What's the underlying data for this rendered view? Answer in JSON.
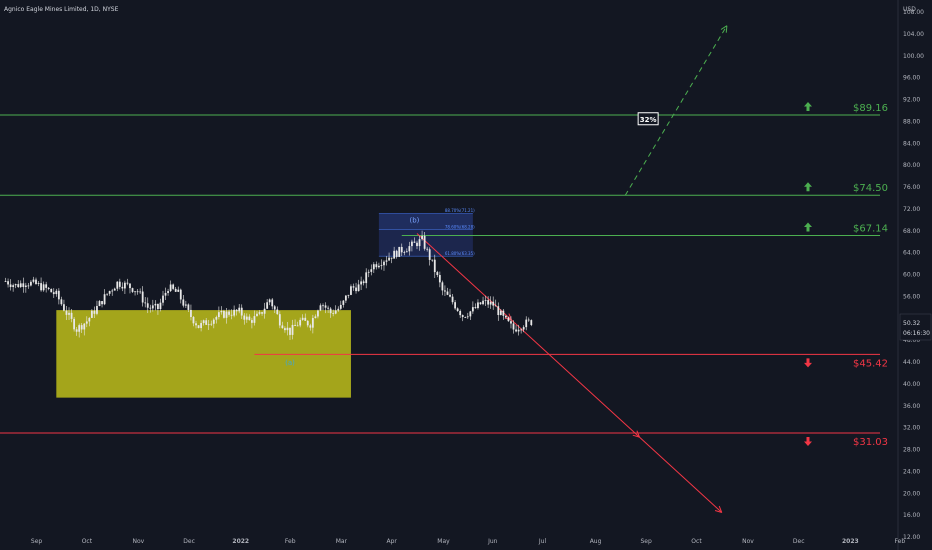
{
  "title": "Agnico Eagle Mines Limited, 1D, NYSE",
  "currency": "USD",
  "colors": {
    "background": "#131722",
    "up_line": "#4caf50",
    "down_line": "#f23645",
    "candle": "#e8e8e8",
    "demand_zone": "#c4c41a",
    "fib_box": "#2a3f8f"
  },
  "chart_data": {
    "type": "line",
    "ylim": [
      12,
      108
    ],
    "y_ticks": [
      "108.00",
      "104.00",
      "100.00",
      "96.00",
      "92.00",
      "88.00",
      "84.00",
      "80.00",
      "76.00",
      "72.00",
      "68.00",
      "64.00",
      "60.00",
      "56.00",
      "52.00",
      "48.00",
      "44.00",
      "40.00",
      "36.00",
      "32.00",
      "28.00",
      "24.00",
      "20.00",
      "16.00",
      "12.00"
    ],
    "x_ticks": [
      "Sep",
      "Oct",
      "Nov",
      "Dec",
      "2022",
      "Feb",
      "Mar",
      "Apr",
      "May",
      "Jun",
      "Jul",
      "Aug",
      "Sep",
      "Oct",
      "Nov",
      "Dec",
      "2023",
      "Feb"
    ],
    "x_domain": [
      0,
      17.2
    ],
    "price_series": {
      "name": "",
      "x": [
        -0.6,
        -0.4,
        -0.2,
        0,
        0.2,
        0.4,
        0.6,
        0.8,
        1,
        1.2,
        1.4,
        1.6,
        1.8,
        2,
        2.2,
        2.4,
        2.6,
        2.8,
        3,
        3.2,
        3.4,
        3.6,
        3.8,
        4,
        4.2,
        4.4,
        4.6,
        4.8,
        5,
        5.2,
        5.4,
        5.6,
        5.8,
        6,
        6.2,
        6.4,
        6.6,
        6.8,
        7,
        7.2,
        7.4,
        7.6,
        7.8,
        8,
        8.2,
        8.4,
        8.6,
        8.8,
        9,
        9.2,
        9.4,
        9.6,
        9.8
      ],
      "y": [
        58.8,
        58,
        58.6,
        58.2,
        57.4,
        56.3,
        53,
        50,
        51.5,
        54,
        56.5,
        58.5,
        58,
        57,
        54,
        53.8,
        57.7,
        56.5,
        53,
        50.5,
        51.5,
        52.5,
        53,
        53.2,
        51.5,
        52.5,
        55.5,
        51.5,
        49.5,
        51.5,
        51,
        55,
        53,
        54,
        57.5,
        58,
        61.5,
        62.5,
        63.5,
        64.5,
        65.3,
        66.3,
        62,
        57,
        55,
        52.5,
        53.5,
        55,
        54.5,
        52,
        50,
        51,
        51.5
      ]
    },
    "levels": [
      {
        "label": "$89.16",
        "value": 89.16,
        "direction": "up"
      },
      {
        "label": "$74.50",
        "value": 74.5,
        "direction": "up"
      },
      {
        "label": "$67.14",
        "value": 67.14,
        "direction": "up"
      },
      {
        "label": "$45.42",
        "value": 45.42,
        "direction": "down"
      },
      {
        "label": "$31.03",
        "value": 31.03,
        "direction": "down"
      }
    ],
    "demand_zone": {
      "x_start": 0.4,
      "x_end": 6.2,
      "y_low": 37.5,
      "y_high": 53.5
    },
    "fib_box": {
      "x_start": 6.75,
      "x_end": 8.6,
      "levels": [
        {
          "label": "88.70%(71.21)",
          "value": 71.21
        },
        {
          "label": "78.60%(68.28)",
          "value": 68.28
        },
        {
          "label": "61.80%(63.35)",
          "value": 63.35
        }
      ]
    },
    "bullish_projection": {
      "x": [
        11.6,
        13.6
      ],
      "y": [
        74.5,
        105.5
      ]
    },
    "bearish_projection": {
      "x": [
        7.5,
        13.5
      ],
      "y": [
        67.5,
        16.5
      ]
    },
    "wave_labels": [
      {
        "text": "(b)",
        "x": 7.45,
        "y": 69.5
      },
      {
        "text": "(a)",
        "x": 5.0,
        "y": 43.5
      }
    ],
    "percent_badge": "32%",
    "last_price": "50.32",
    "countdown": "06:16:30"
  }
}
